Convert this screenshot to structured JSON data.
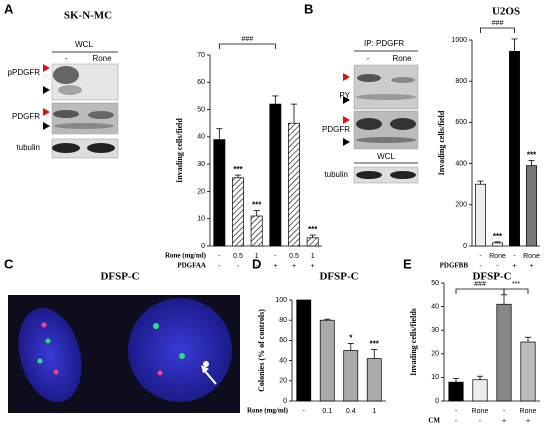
{
  "panels": {
    "A": {
      "letter": "A",
      "cell_line": "SK-N-MC",
      "wcl": "WCL",
      "lanes": [
        "-",
        "Rone"
      ],
      "blots": [
        "pPDGFR",
        "PDGFR",
        "tubulin"
      ]
    },
    "B": {
      "letter": "B",
      "ip": "IP: PDGFR",
      "lanes": [
        "-",
        "Rone"
      ],
      "blots": [
        "PY",
        "PDGFR",
        "tubulin"
      ],
      "wcl": "WCL"
    },
    "C": {
      "letter": "C",
      "title": "DFSP-C"
    },
    "D": {
      "letter": "D"
    },
    "E": {
      "letter": "E"
    }
  },
  "chart_data": [
    {
      "type": "bar",
      "ylabel": "Invading cells/field",
      "values": [
        39,
        25,
        11,
        52,
        45,
        3
      ],
      "errors": [
        4,
        1,
        2,
        3,
        7,
        1
      ],
      "colors": [
        "#000000",
        "#ffffff",
        "#ffffff",
        "#000000",
        "#ffffff",
        "#ffffff"
      ],
      "hatch": [
        false,
        true,
        true,
        false,
        true,
        true
      ],
      "ylim": [
        0,
        70
      ],
      "yticks": [
        0,
        10,
        20,
        30,
        40,
        50,
        60,
        70
      ],
      "rows": [
        {
          "name": "Rone (mg/ml)",
          "labels": [
            "-",
            "0.5",
            "1",
            "-",
            "0.5",
            "1"
          ]
        },
        {
          "name": "PDGFAA",
          "labels": [
            "-",
            "-",
            "-",
            "+",
            "+",
            "+"
          ]
        }
      ],
      "annotations": [
        {
          "index": 1,
          "text": "***"
        },
        {
          "index": 2,
          "text": "***"
        },
        {
          "index": 5,
          "text": "***"
        }
      ],
      "brackets": [
        {
          "from": 0,
          "to": 3,
          "text": "###"
        }
      ]
    },
    {
      "type": "bar",
      "title": "U2OS",
      "ylabel": "Invading cells/field",
      "values": [
        300,
        15,
        945,
        390
      ],
      "errors": [
        15,
        5,
        60,
        25
      ],
      "colors": [
        "#eeeeee",
        "#ffffff",
        "#000000",
        "#777777"
      ],
      "hatch": [
        false,
        false,
        false,
        false
      ],
      "ylim": [
        0,
        1000
      ],
      "yticks": [
        0,
        200,
        400,
        600,
        800,
        1000
      ],
      "rows": [
        {
          "labels": [
            "-",
            "Rone",
            "-",
            "Rone"
          ]
        },
        {
          "name": "PDGFBB",
          "labels": [
            "-",
            "-",
            "+",
            "+"
          ]
        }
      ],
      "annotations": [
        {
          "index": 1,
          "text": "***"
        },
        {
          "index": 3,
          "text": "***"
        }
      ],
      "brackets": [
        {
          "from": 0,
          "to": 2,
          "text": "###"
        }
      ]
    },
    {
      "type": "bar",
      "title": "DFSP-C",
      "ylabel": "Colonies (% of controls)",
      "values": [
        100,
        80,
        50,
        42
      ],
      "errors": [
        0,
        1,
        7,
        9
      ],
      "colors": [
        "#000000",
        "#aaaaaa",
        "#aaaaaa",
        "#aaaaaa"
      ],
      "hatch": [
        false,
        false,
        false,
        false
      ],
      "ylim": [
        0,
        100
      ],
      "yticks": [
        0,
        20,
        40,
        60,
        80,
        100
      ],
      "rows": [
        {
          "name": "Rone  (mg/ml)",
          "labels": [
            "-",
            "0.1",
            "0.4",
            "1"
          ]
        }
      ],
      "annotations": [
        {
          "index": 2,
          "text": "*"
        },
        {
          "index": 3,
          "text": "***"
        }
      ],
      "brackets": []
    },
    {
      "type": "bar",
      "title": "DFSP-C",
      "ylabel": "Invading cells/fields",
      "values": [
        8,
        9,
        41,
        25
      ],
      "errors": [
        1.5,
        1.5,
        4,
        2
      ],
      "colors": [
        "#000000",
        "#eeeeee",
        "#888888",
        "#bbbbbb"
      ],
      "hatch": [
        false,
        false,
        false,
        false
      ],
      "ylim": [
        0,
        50
      ],
      "yticks": [
        0,
        10,
        20,
        30,
        40,
        50
      ],
      "rows": [
        {
          "labels": [
            "-",
            "Rone",
            "-",
            "Rone"
          ]
        },
        {
          "name": "CM",
          "labels": [
            "-",
            "-",
            "+",
            "+"
          ]
        }
      ],
      "annotations": [],
      "brackets": [
        {
          "from": 0,
          "to": 2,
          "text": "###"
        },
        {
          "from": 2,
          "to": 3,
          "text": "***"
        }
      ]
    }
  ]
}
